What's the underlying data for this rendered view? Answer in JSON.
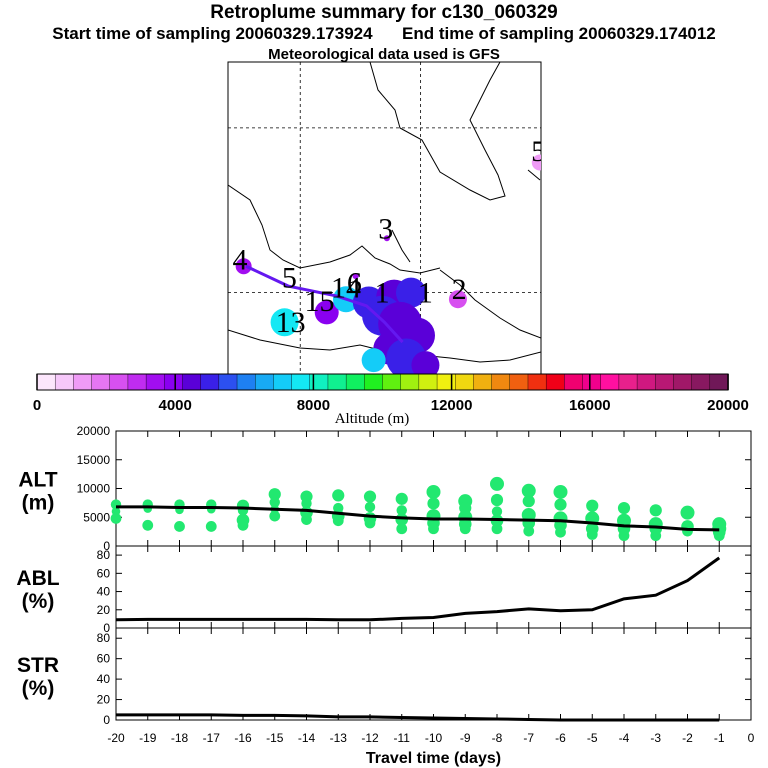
{
  "header": {
    "title": "Retroplume summary for c130_060329",
    "start_label": "Start time of sampling 20060329.173924",
    "end_label": "End time of sampling 20060329.174012",
    "met_label": "Meteorological data used is GFS"
  },
  "colorbar": {
    "ticks": [
      "0",
      "4000",
      "8000",
      "12000",
      "16000",
      "20000"
    ],
    "label": "Altitude (m)",
    "colors": [
      "#fce6fc",
      "#f6c8fa",
      "#ef9bf6",
      "#e576f2",
      "#d750f0",
      "#c02cf0",
      "#a20ef0",
      "#8a00f0",
      "#5a00d8",
      "#3a20e8",
      "#2c50f0",
      "#1e80f2",
      "#18aaf4",
      "#14ccf8",
      "#14e8f4",
      "#10f0c0",
      "#10f090",
      "#10f060",
      "#20f020",
      "#60f010",
      "#a0f010",
      "#d0f010",
      "#f0f010",
      "#f0d810",
      "#f0b010",
      "#f08810",
      "#f06010",
      "#f03010",
      "#f00018",
      "#f00070",
      "#f0008c",
      "#ff10a0",
      "#e8208c",
      "#d01880",
      "#b81874",
      "#a01868",
      "#881860",
      "#701858"
    ]
  },
  "chart_data": [
    {
      "type": "scatter",
      "name": "map",
      "numbers": [
        {
          "label": "4",
          "x": -85.0,
          "y": 21.4
        },
        {
          "label": "5",
          "x": -80.9,
          "y": 20.3
        },
        {
          "label": "3",
          "x": -72.9,
          "y": 23.3
        },
        {
          "label": "2",
          "x": -66.8,
          "y": 19.6
        },
        {
          "label": "6",
          "x": -75.5,
          "y": 20.0
        },
        {
          "label": "1",
          "x": -73.2,
          "y": 19.4
        },
        {
          "label": "1",
          "x": -69.6,
          "y": 19.4
        },
        {
          "label": "5",
          "x": -60.2,
          "y": 28.0
        },
        {
          "label": "15",
          "x": -78.4,
          "y": 18.9
        },
        {
          "label": "13",
          "x": -80.8,
          "y": 17.6
        },
        {
          "label": "14",
          "x": -76.2,
          "y": 19.7
        }
      ],
      "path": [
        [
          -84.5,
          21.6
        ],
        [
          -81.0,
          20.4
        ],
        [
          -77.0,
          19.8
        ],
        [
          -74.5,
          19.2
        ],
        [
          -73.0,
          18.2
        ],
        [
          -71.5,
          17.0
        ]
      ],
      "blobs": [
        {
          "x": -84.7,
          "y": 21.6,
          "r": 8,
          "alt": 3200
        },
        {
          "x": -81.3,
          "y": 18.2,
          "r": 14,
          "alt": 7400
        },
        {
          "x": -77.8,
          "y": 18.8,
          "r": 12,
          "alt": 4200
        },
        {
          "x": -76.2,
          "y": 19.6,
          "r": 13,
          "alt": 7200
        },
        {
          "x": -74.3,
          "y": 19.4,
          "r": 16,
          "alt": 4800
        },
        {
          "x": -72.2,
          "y": 19.7,
          "r": 18,
          "alt": 4600
        },
        {
          "x": -70.8,
          "y": 20.0,
          "r": 15,
          "alt": 4900
        },
        {
          "x": -73.2,
          "y": 18.6,
          "r": 20,
          "alt": 4800
        },
        {
          "x": -71.7,
          "y": 18.1,
          "r": 22,
          "alt": 4700
        },
        {
          "x": -70.3,
          "y": 17.4,
          "r": 18,
          "alt": 4600
        },
        {
          "x": -72.6,
          "y": 16.6,
          "r": 16,
          "alt": 4700
        },
        {
          "x": -71.2,
          "y": 16.0,
          "r": 20,
          "alt": 4800
        },
        {
          "x": -69.6,
          "y": 15.6,
          "r": 14,
          "alt": 4700
        },
        {
          "x": -73.9,
          "y": 15.9,
          "r": 12,
          "alt": 7000
        },
        {
          "x": -66.9,
          "y": 19.6,
          "r": 9,
          "alt": 2400
        },
        {
          "x": -60.1,
          "y": 27.9,
          "r": 8,
          "alt": 1400
        },
        {
          "x": -72.8,
          "y": 23.3,
          "r": 3,
          "alt": 3400
        },
        {
          "x": -75.4,
          "y": 21.0,
          "r": 3,
          "alt": 3400
        }
      ],
      "gridlines": {
        "lon": [
          -80,
          -70
        ],
        "lat": [
          30,
          20
        ]
      },
      "xlim": [
        -86,
        -60
      ],
      "ylim": [
        15,
        34
      ]
    },
    {
      "type": "line",
      "name": "ALT",
      "label_line1": "ALT",
      "label_line2": "(m)",
      "x": [
        -20,
        -19,
        -18,
        -17,
        -16,
        -15,
        -14,
        -13,
        -12,
        -11,
        -10,
        -9,
        -8,
        -7,
        -6,
        -5,
        -4,
        -3,
        -2,
        -1
      ],
      "values": [
        6800,
        6800,
        6700,
        6700,
        6600,
        6400,
        6200,
        5700,
        5200,
        4900,
        4700,
        4700,
        4600,
        4500,
        4400,
        4000,
        3500,
        3300,
        2900,
        2800
      ],
      "scatter": [
        {
          "x": -20,
          "y": [
            7200,
            6000,
            4800
          ]
        },
        {
          "x": -19,
          "y": [
            7200,
            6500,
            3600
          ]
        },
        {
          "x": -18,
          "y": [
            7200,
            6300,
            3400
          ]
        },
        {
          "x": -17,
          "y": [
            7200,
            6400,
            3400
          ]
        },
        {
          "x": -16,
          "y": [
            7000,
            6200,
            4500,
            3600
          ]
        },
        {
          "x": -15,
          "y": [
            9000,
            7600,
            6400,
            5200
          ]
        },
        {
          "x": -14,
          "y": [
            8600,
            7400,
            5800,
            4600
          ]
        },
        {
          "x": -13,
          "y": [
            8800,
            6600,
            5200,
            4400
          ]
        },
        {
          "x": -12,
          "y": [
            8600,
            6800,
            4800,
            4000
          ]
        },
        {
          "x": -11,
          "y": [
            8200,
            6200,
            4600,
            3000
          ]
        },
        {
          "x": -10,
          "y": [
            9400,
            7400,
            5200,
            4000,
            3000
          ]
        },
        {
          "x": -9,
          "y": [
            7800,
            6600,
            5000,
            3800,
            3000
          ]
        },
        {
          "x": -8,
          "y": [
            10800,
            8000,
            6000,
            4400,
            3000
          ]
        },
        {
          "x": -7,
          "y": [
            9600,
            7800,
            5400,
            4000,
            2600
          ]
        },
        {
          "x": -6,
          "y": [
            9400,
            7200,
            4800,
            3600,
            2400
          ]
        },
        {
          "x": -5,
          "y": [
            7000,
            4800,
            3000,
            2000
          ]
        },
        {
          "x": -4,
          "y": [
            6600,
            4400,
            3000,
            1800
          ]
        },
        {
          "x": -3,
          "y": [
            6200,
            3800,
            3000,
            1800
          ]
        },
        {
          "x": -2,
          "y": [
            5800,
            3400,
            2600
          ]
        },
        {
          "x": -1,
          "y": [
            3800,
            3000,
            2400,
            1800
          ]
        }
      ],
      "xlim": [
        -20,
        0
      ],
      "ylim": [
        0,
        20000
      ],
      "yticks": [
        0,
        5000,
        10000,
        15000,
        20000
      ]
    },
    {
      "type": "line",
      "name": "ABL",
      "label_line1": "ABL",
      "label_line2": "(%)",
      "x": [
        -20,
        -19,
        -18,
        -17,
        -16,
        -15,
        -14,
        -13,
        -12,
        -11,
        -10,
        -9,
        -8,
        -7,
        -6,
        -5,
        -4,
        -3,
        -2,
        -1
      ],
      "values": [
        9,
        9.5,
        9.5,
        9.5,
        9.5,
        9.5,
        9.5,
        9,
        9,
        10.5,
        11.5,
        16,
        18,
        21,
        19,
        20,
        32,
        36,
        52,
        77
      ],
      "xlim": [
        -20,
        0
      ],
      "ylim": [
        0,
        90
      ],
      "yticks": [
        0,
        20,
        40,
        60,
        80
      ]
    },
    {
      "type": "line",
      "name": "STR",
      "label_line1": "STR",
      "label_line2": "(%)",
      "x": [
        -20,
        -19,
        -18,
        -17,
        -16,
        -15,
        -14,
        -13,
        -12,
        -11,
        -10,
        -9,
        -8,
        -7,
        -6,
        -5,
        -4,
        -3,
        -2,
        -1
      ],
      "values": [
        5,
        5,
        5,
        5,
        4.5,
        4.5,
        4,
        3,
        3,
        2.5,
        2,
        1.5,
        1,
        0.5,
        0,
        0,
        0,
        0,
        0,
        0
      ],
      "xlim": [
        -20,
        0
      ],
      "ylim": [
        0,
        90
      ],
      "yticks": [
        0,
        20,
        40,
        60,
        80
      ],
      "xticks": [
        "-20",
        "-19",
        "-18",
        "-17",
        "-16",
        "-15",
        "-14",
        "-13",
        "-12",
        "-11",
        "-10",
        "-9",
        "-8",
        "-7",
        "-6",
        "-5",
        "-4",
        "-3",
        "-2",
        "-1",
        "0"
      ],
      "xlabel": "Travel time (days)"
    }
  ]
}
